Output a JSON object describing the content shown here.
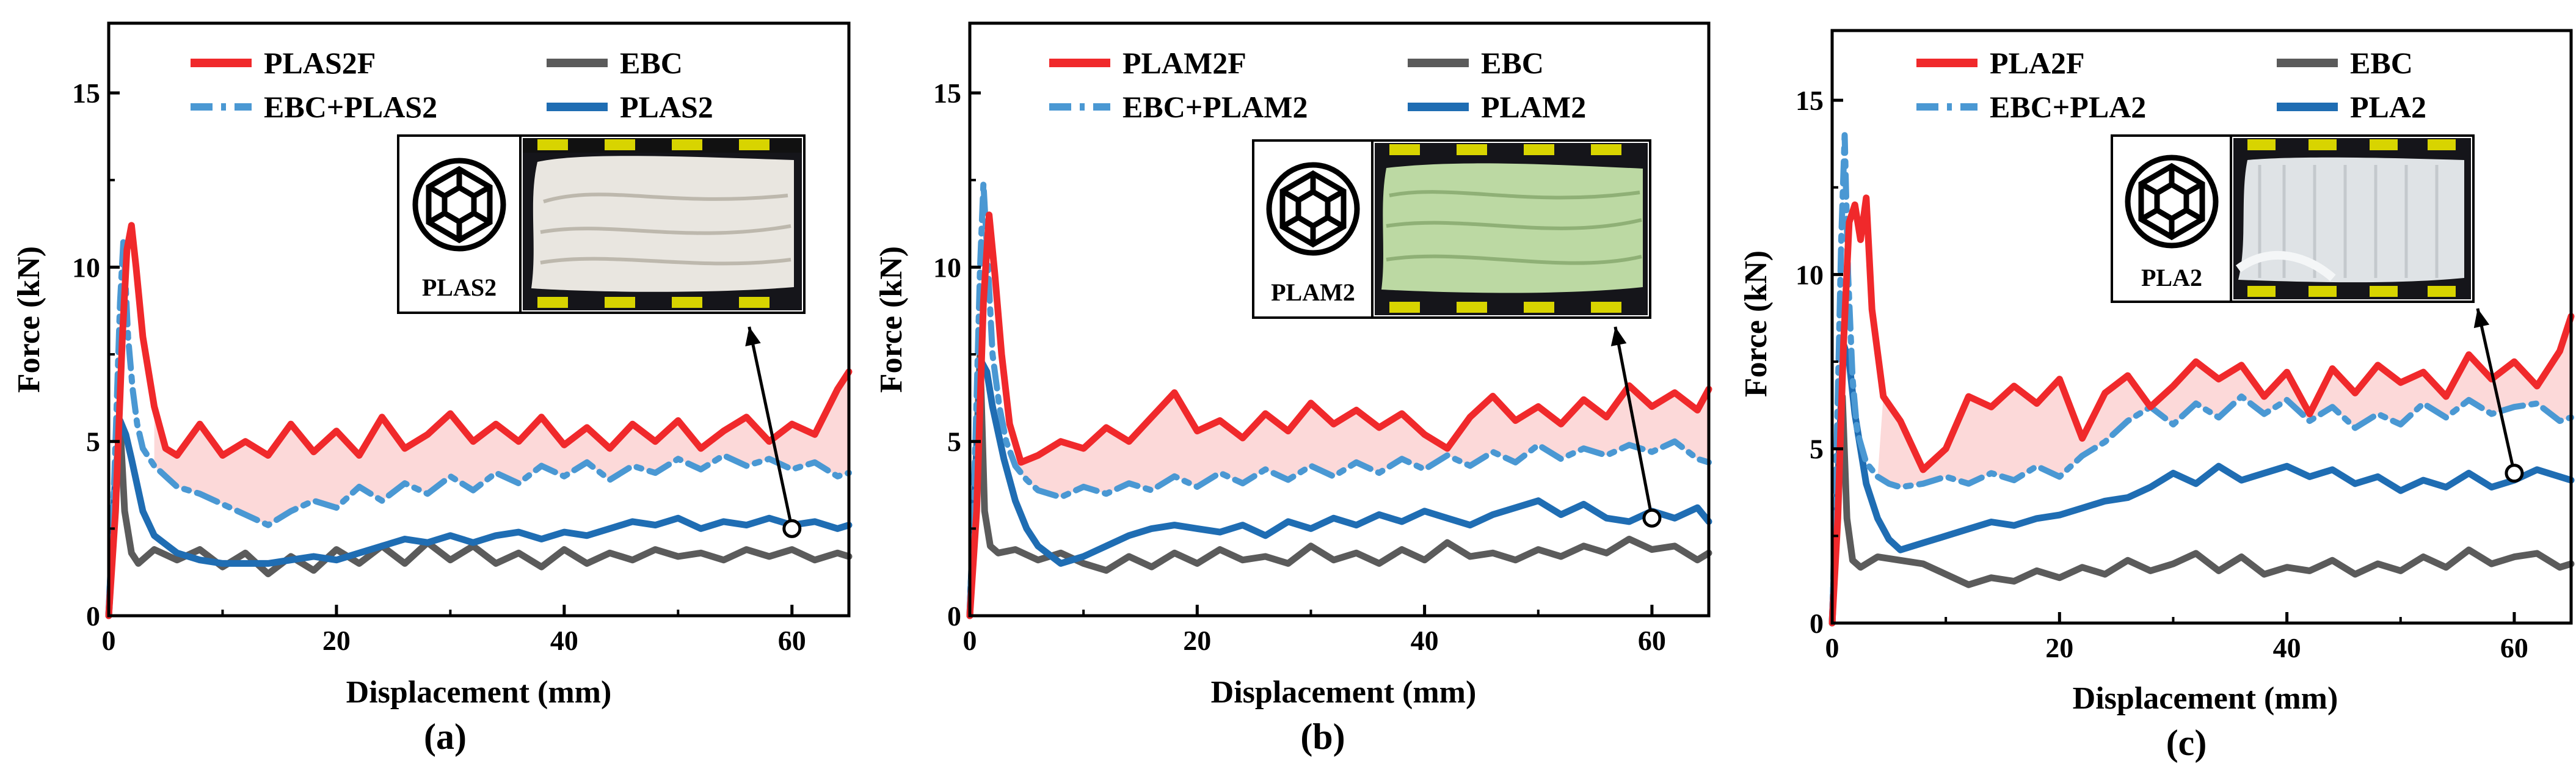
{
  "colors": {
    "red": "#f0292b",
    "gray": "#5b5b5b",
    "lightblue": "#4a98d3",
    "blue": "#1f6db3",
    "fill": "#fbd2d2",
    "axis": "#000000"
  },
  "chart_data": [
    {
      "type": "line",
      "panel_label": "(a)",
      "xlabel": "Displacement (mm)",
      "ylabel": "Force (kN)",
      "xlim": [
        0,
        65
      ],
      "ylim": [
        0,
        17
      ],
      "xticks": [
        "0",
        "20",
        "40",
        "60"
      ],
      "yticks": [
        "0",
        "5",
        "10",
        "15"
      ],
      "fill_between": [
        "PLAS2F",
        "EBC+PLAS2"
      ],
      "inset": {
        "label": "PLAS2",
        "photo": "crushed-white-specimen",
        "photo_color": "#e9e6e0",
        "arrow_from_x": 60,
        "arrow_from_y": 2.5
      },
      "series": [
        {
          "name": "PLAS2F",
          "color_key": "red",
          "x": [
            0,
            0.6,
            1.2,
            1.6,
            2.0,
            2.4,
            3.0,
            4.0,
            5.0,
            6.0,
            8.0,
            10,
            12,
            14,
            16,
            18,
            20,
            22,
            24,
            26,
            28,
            30,
            32,
            34,
            36,
            38,
            40,
            42,
            44,
            46,
            48,
            50,
            52,
            54,
            56,
            58,
            60,
            62,
            64,
            65
          ],
          "y": [
            0,
            3,
            8,
            10.5,
            11.2,
            10,
            8,
            6,
            4.8,
            4.6,
            5.5,
            4.6,
            5.0,
            4.6,
            5.5,
            4.7,
            5.3,
            4.6,
            5.7,
            4.8,
            5.2,
            5.8,
            5.0,
            5.5,
            5.0,
            5.7,
            4.9,
            5.4,
            4.8,
            5.5,
            5.0,
            5.6,
            4.8,
            5.3,
            5.7,
            5.0,
            5.5,
            5.2,
            6.5,
            7.0
          ]
        },
        {
          "name": "EBC",
          "color_key": "gray",
          "x": [
            0,
            0.6,
            1.0,
            1.4,
            2.0,
            2.6,
            4,
            6,
            8,
            10,
            12,
            14,
            16,
            18,
            20,
            22,
            24,
            26,
            28,
            30,
            32,
            34,
            36,
            38,
            40,
            42,
            44,
            46,
            48,
            50,
            52,
            54,
            56,
            58,
            60,
            62,
            64,
            65
          ],
          "y": [
            0,
            3.5,
            5.5,
            3.0,
            1.8,
            1.5,
            1.9,
            1.6,
            1.9,
            1.4,
            1.8,
            1.2,
            1.7,
            1.3,
            1.9,
            1.5,
            2.0,
            1.5,
            2.1,
            1.6,
            2.0,
            1.5,
            1.8,
            1.4,
            1.9,
            1.5,
            1.8,
            1.6,
            1.9,
            1.7,
            1.8,
            1.6,
            1.9,
            1.7,
            1.9,
            1.6,
            1.8,
            1.7
          ]
        },
        {
          "name": "EBC+PLAS2",
          "color_key": "lightblue",
          "x": [
            0,
            0.5,
            1.0,
            1.3,
            1.7,
            2.1,
            2.5,
            3,
            4,
            5,
            6,
            8,
            10,
            12,
            14,
            16,
            18,
            20,
            22,
            24,
            26,
            28,
            30,
            32,
            34,
            36,
            38,
            40,
            42,
            44,
            46,
            48,
            50,
            52,
            54,
            56,
            58,
            60,
            62,
            64,
            65
          ],
          "y": [
            0,
            4,
            9,
            10.8,
            8,
            6.5,
            5.5,
            4.8,
            4.3,
            4.0,
            3.7,
            3.5,
            3.2,
            2.9,
            2.6,
            3.0,
            3.3,
            3.1,
            3.7,
            3.3,
            3.8,
            3.5,
            4.0,
            3.6,
            4.1,
            3.8,
            4.3,
            4.0,
            4.4,
            3.9,
            4.3,
            4.1,
            4.5,
            4.2,
            4.6,
            4.3,
            4.5,
            4.2,
            4.4,
            4.0,
            4.1
          ]
        },
        {
          "name": "PLAS2",
          "color_key": "blue",
          "x": [
            0,
            0.5,
            1.0,
            1.5,
            2.0,
            3,
            4,
            6,
            8,
            10,
            12,
            14,
            16,
            18,
            20,
            22,
            24,
            26,
            28,
            30,
            32,
            34,
            36,
            38,
            40,
            42,
            44,
            46,
            48,
            50,
            52,
            54,
            56,
            58,
            60,
            62,
            64,
            65
          ],
          "y": [
            0,
            3.5,
            5.6,
            5.2,
            4.5,
            3.0,
            2.3,
            1.8,
            1.6,
            1.5,
            1.5,
            1.5,
            1.6,
            1.7,
            1.6,
            1.8,
            2.0,
            2.2,
            2.1,
            2.3,
            2.1,
            2.3,
            2.4,
            2.2,
            2.4,
            2.3,
            2.5,
            2.7,
            2.6,
            2.8,
            2.5,
            2.7,
            2.6,
            2.8,
            2.6,
            2.7,
            2.5,
            2.6
          ]
        }
      ]
    },
    {
      "type": "line",
      "panel_label": "(b)",
      "xlabel": "Displacement (mm)",
      "ylabel": "Force (kN)",
      "xlim": [
        0,
        65
      ],
      "ylim": [
        0,
        17
      ],
      "xticks": [
        "0",
        "20",
        "40",
        "60"
      ],
      "yticks": [
        "0",
        "5",
        "10",
        "15"
      ],
      "fill_between": [
        "PLAM2F",
        "EBC+PLAM2"
      ],
      "inset": {
        "label": "PLAM2",
        "photo": "crushed-green-specimen",
        "photo_color": "#bcd9a3",
        "arrow_from_x": 60,
        "arrow_from_y": 2.8
      },
      "series": [
        {
          "name": "PLAM2F",
          "color_key": "red",
          "x": [
            0,
            0.6,
            1.2,
            1.7,
            2.2,
            2.8,
            3.5,
            4.5,
            6,
            8,
            10,
            12,
            14,
            16,
            18,
            20,
            22,
            24,
            26,
            28,
            30,
            32,
            34,
            36,
            38,
            40,
            42,
            44,
            46,
            48,
            50,
            52,
            54,
            56,
            58,
            60,
            62,
            64,
            65
          ],
          "y": [
            0,
            3,
            9,
            11.5,
            9.8,
            7.5,
            5.5,
            4.4,
            4.6,
            5.0,
            4.8,
            5.4,
            5.0,
            5.7,
            6.4,
            5.3,
            5.6,
            5.1,
            5.8,
            5.3,
            6.1,
            5.5,
            5.9,
            5.4,
            5.8,
            5.2,
            4.8,
            5.7,
            6.3,
            5.6,
            6.0,
            5.5,
            6.2,
            5.7,
            6.6,
            6.0,
            6.4,
            5.9,
            6.5
          ]
        },
        {
          "name": "EBC",
          "color_key": "gray",
          "x": [
            0,
            0.5,
            0.9,
            1.3,
            1.8,
            2.5,
            4,
            6,
            8,
            10,
            12,
            14,
            16,
            18,
            20,
            22,
            24,
            26,
            28,
            30,
            32,
            34,
            36,
            38,
            40,
            42,
            44,
            46,
            48,
            50,
            52,
            54,
            56,
            58,
            60,
            62,
            64,
            65
          ],
          "y": [
            0,
            4,
            7.5,
            3.0,
            2.0,
            1.8,
            1.9,
            1.6,
            1.8,
            1.5,
            1.3,
            1.7,
            1.4,
            1.8,
            1.5,
            1.9,
            1.6,
            1.7,
            1.5,
            2.0,
            1.6,
            1.8,
            1.5,
            1.9,
            1.6,
            2.1,
            1.7,
            1.8,
            1.6,
            1.9,
            1.7,
            2.0,
            1.8,
            2.2,
            1.9,
            2.0,
            1.6,
            1.8
          ]
        },
        {
          "name": "EBC+PLAM2",
          "color_key": "lightblue",
          "x": [
            0,
            0.5,
            0.9,
            1.2,
            1.6,
            2.0,
            2.6,
            3.2,
            4,
            5,
            6,
            8,
            10,
            12,
            14,
            16,
            18,
            20,
            22,
            24,
            26,
            28,
            30,
            32,
            34,
            36,
            38,
            40,
            42,
            44,
            46,
            48,
            50,
            52,
            54,
            56,
            58,
            60,
            62,
            64,
            65
          ],
          "y": [
            0,
            5,
            10,
            12.4,
            10,
            7.5,
            6,
            5,
            4.3,
            3.9,
            3.6,
            3.4,
            3.7,
            3.5,
            3.8,
            3.6,
            4.0,
            3.7,
            4.1,
            3.8,
            4.2,
            3.9,
            4.3,
            4.0,
            4.4,
            4.1,
            4.5,
            4.2,
            4.6,
            4.3,
            4.7,
            4.4,
            4.9,
            4.5,
            4.8,
            4.6,
            4.9,
            4.7,
            5.0,
            4.5,
            4.4
          ]
        },
        {
          "name": "PLAM2",
          "color_key": "blue",
          "x": [
            0,
            0.5,
            1.0,
            1.5,
            2.0,
            3,
            4,
            5,
            6,
            8,
            10,
            12,
            14,
            16,
            18,
            20,
            22,
            24,
            26,
            28,
            30,
            32,
            34,
            36,
            38,
            40,
            42,
            44,
            46,
            48,
            50,
            52,
            54,
            56,
            58,
            60,
            62,
            64,
            65
          ],
          "y": [
            0,
            4,
            7.3,
            7.0,
            6.0,
            4.5,
            3.3,
            2.5,
            2.0,
            1.5,
            1.7,
            2.0,
            2.3,
            2.5,
            2.6,
            2.5,
            2.4,
            2.6,
            2.3,
            2.7,
            2.5,
            2.8,
            2.6,
            2.9,
            2.7,
            3.0,
            2.8,
            2.6,
            2.9,
            3.1,
            3.3,
            2.9,
            3.2,
            2.8,
            2.7,
            3.0,
            2.8,
            3.1,
            2.7
          ]
        }
      ]
    },
    {
      "type": "line",
      "panel_label": "(c)",
      "xlabel": "Displacement (mm)",
      "ylabel": "Force (kN)",
      "xlim": [
        0,
        65
      ],
      "ylim": [
        0,
        17
      ],
      "xticks": [
        "0",
        "20",
        "40",
        "60"
      ],
      "yticks": [
        "0",
        "5",
        "10",
        "15"
      ],
      "fill_between": [
        "PLA2F",
        "EBC+PLA2"
      ],
      "inset": {
        "label": "PLA2",
        "photo": "crushed-translucent-specimen",
        "photo_color": "#dfe3e6",
        "arrow_from_x": 60,
        "arrow_from_y": 4.3
      },
      "series": [
        {
          "name": "PLA2F",
          "color_key": "red",
          "x": [
            0,
            0.5,
            1.0,
            1.5,
            2.0,
            2.5,
            3.0,
            3.5,
            4.5,
            6,
            8,
            10,
            12,
            14,
            16,
            18,
            20,
            22,
            24,
            26,
            28,
            30,
            32,
            34,
            36,
            38,
            40,
            42,
            44,
            46,
            48,
            50,
            52,
            54,
            56,
            58,
            60,
            62,
            64,
            65
          ],
          "y": [
            0,
            3,
            8,
            11.5,
            12.0,
            11,
            12.2,
            9,
            6.5,
            5.8,
            4.4,
            5.0,
            6.5,
            6.2,
            6.8,
            6.3,
            7.0,
            5.3,
            6.6,
            7.1,
            6.2,
            6.8,
            7.5,
            7.0,
            7.4,
            6.5,
            7.2,
            6.0,
            7.3,
            6.6,
            7.4,
            6.9,
            7.2,
            6.5,
            7.7,
            7.0,
            7.5,
            6.8,
            7.8,
            8.8
          ]
        },
        {
          "name": "EBC",
          "color_key": "gray",
          "x": [
            0,
            0.5,
            0.9,
            1.3,
            1.8,
            2.5,
            4,
            6,
            8,
            10,
            12,
            14,
            16,
            18,
            20,
            22,
            24,
            26,
            28,
            30,
            32,
            34,
            36,
            38,
            40,
            42,
            44,
            46,
            48,
            50,
            52,
            54,
            56,
            58,
            60,
            62,
            64,
            65
          ],
          "y": [
            0,
            4,
            6.5,
            3.0,
            1.8,
            1.6,
            1.9,
            1.8,
            1.7,
            1.4,
            1.1,
            1.3,
            1.2,
            1.5,
            1.3,
            1.6,
            1.4,
            1.8,
            1.5,
            1.7,
            2.0,
            1.5,
            1.9,
            1.4,
            1.6,
            1.5,
            1.8,
            1.4,
            1.7,
            1.5,
            1.9,
            1.6,
            2.1,
            1.7,
            1.9,
            2.0,
            1.6,
            1.7
          ]
        },
        {
          "name": "EBC+PLA2",
          "color_key": "lightblue",
          "x": [
            0,
            0.4,
            0.8,
            1.1,
            1.4,
            1.8,
            2.2,
            3,
            4,
            5,
            6,
            8,
            10,
            12,
            14,
            16,
            18,
            20,
            22,
            24,
            26,
            28,
            30,
            32,
            34,
            36,
            38,
            40,
            42,
            44,
            46,
            48,
            50,
            52,
            54,
            56,
            58,
            60,
            62,
            64,
            65
          ],
          "y": [
            0,
            5,
            11,
            14.0,
            10,
            7,
            5.5,
            4.6,
            4.2,
            4.0,
            3.9,
            4.0,
            4.2,
            4.0,
            4.3,
            4.1,
            4.5,
            4.2,
            4.8,
            5.2,
            5.8,
            6.2,
            5.7,
            6.3,
            5.9,
            6.5,
            6.0,
            6.4,
            5.8,
            6.2,
            5.6,
            6.0,
            5.7,
            6.3,
            5.9,
            6.4,
            6.0,
            6.2,
            6.3,
            5.8,
            5.9
          ]
        },
        {
          "name": "PLA2",
          "color_key": "blue",
          "x": [
            0,
            0.5,
            1.0,
            1.5,
            2.0,
            3,
            4,
            5,
            6,
            8,
            10,
            12,
            14,
            16,
            18,
            20,
            22,
            24,
            26,
            28,
            30,
            32,
            34,
            36,
            38,
            40,
            42,
            44,
            46,
            48,
            50,
            52,
            54,
            56,
            58,
            60,
            62,
            64,
            65
          ],
          "y": [
            0,
            4,
            8,
            7.5,
            6.0,
            4.0,
            3.0,
            2.4,
            2.1,
            2.3,
            2.5,
            2.7,
            2.9,
            2.8,
            3.0,
            3.1,
            3.3,
            3.5,
            3.6,
            3.9,
            4.3,
            4.0,
            4.5,
            4.1,
            4.3,
            4.5,
            4.2,
            4.4,
            4.0,
            4.2,
            3.8,
            4.1,
            3.9,
            4.3,
            3.9,
            4.1,
            4.4,
            4.2,
            4.1
          ]
        }
      ]
    }
  ]
}
